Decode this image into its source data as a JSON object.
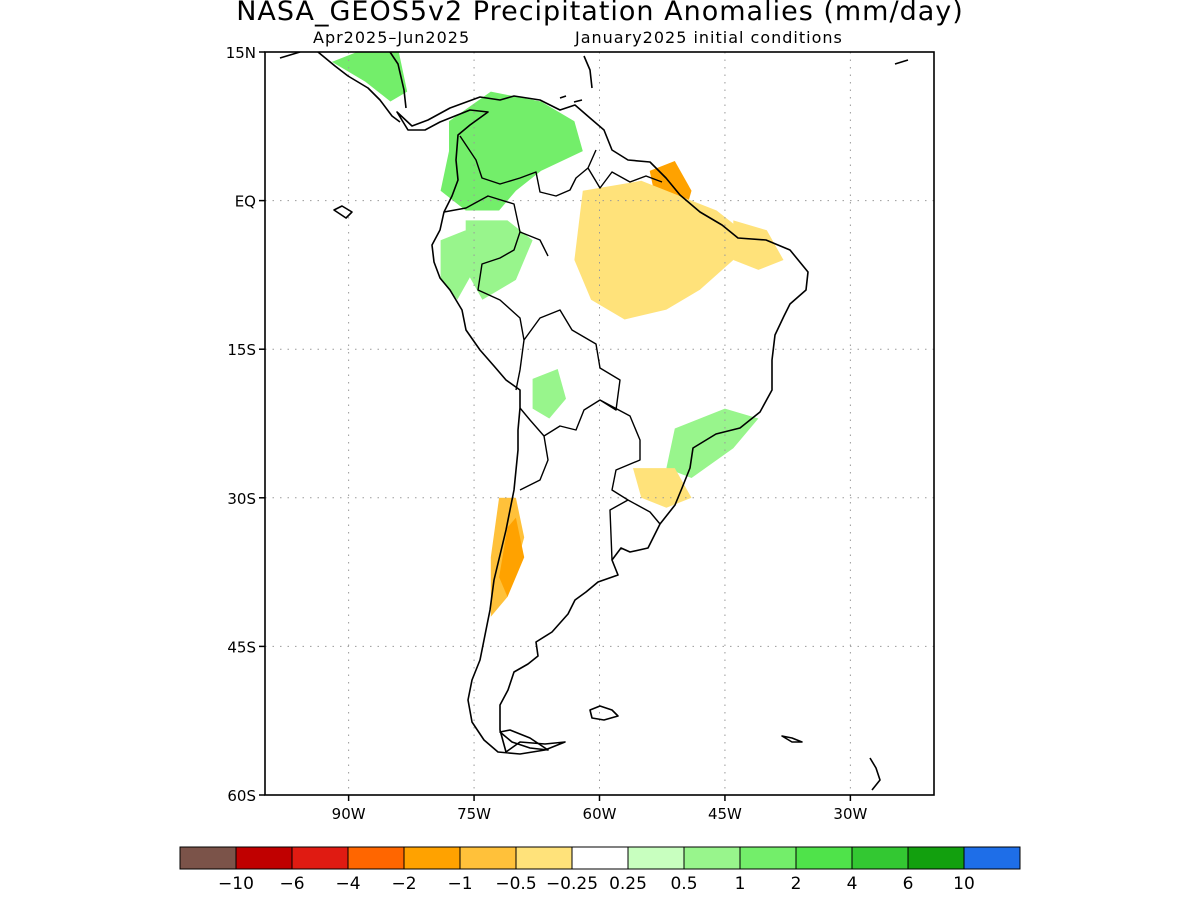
{
  "title": "NASA_GEOS5v2 Precipitation Anomalies (mm/day)",
  "subtitle_left": "Apr2025–Jun2025",
  "subtitle_right": "January2025 initial conditions",
  "map": {
    "lon_range": [
      -100,
      -20
    ],
    "lat_range": [
      -60,
      15
    ],
    "lat_ticks": [
      {
        "value": 15,
        "label": "15N"
      },
      {
        "value": 0,
        "label": "EQ"
      },
      {
        "value": -15,
        "label": "15S"
      },
      {
        "value": -30,
        "label": "30S"
      },
      {
        "value": -45,
        "label": "45S"
      },
      {
        "value": -60,
        "label": "60S"
      }
    ],
    "lon_ticks": [
      {
        "value": -90,
        "label": "90W"
      },
      {
        "value": -75,
        "label": "75W"
      },
      {
        "value": -60,
        "label": "60W"
      },
      {
        "value": -45,
        "label": "45W"
      },
      {
        "value": -30,
        "label": "30W"
      }
    ],
    "grid": true,
    "regions": [
      {
        "name": "central-america-wet",
        "category": 10,
        "points": [
          [
            -92,
            14
          ],
          [
            -89,
            15
          ],
          [
            -84,
            15
          ],
          [
            -83,
            11
          ],
          [
            -85,
            10
          ],
          [
            -88,
            12
          ]
        ]
      },
      {
        "name": "colombia-wet",
        "category": 10,
        "points": [
          [
            -78,
            8
          ],
          [
            -73,
            11
          ],
          [
            -67,
            10
          ],
          [
            -63,
            8
          ],
          [
            -62,
            5
          ],
          [
            -67,
            3
          ],
          [
            -70,
            1
          ],
          [
            -72,
            -1
          ],
          [
            -76,
            -1
          ],
          [
            -79,
            1
          ],
          [
            -78,
            5
          ]
        ]
      },
      {
        "name": "western-amazon-wet",
        "category": 9,
        "points": [
          [
            -76,
            -2
          ],
          [
            -71,
            -2
          ],
          [
            -68,
            -4
          ],
          [
            -70,
            -8
          ],
          [
            -74,
            -10
          ],
          [
            -76,
            -7
          ]
        ]
      },
      {
        "name": "peru-coast-wet",
        "category": 9,
        "points": [
          [
            -79,
            -4
          ],
          [
            -76,
            -3
          ],
          [
            -75,
            -7
          ],
          [
            -77,
            -10
          ],
          [
            -79,
            -8
          ]
        ]
      },
      {
        "name": "bolivia-wet",
        "category": 9,
        "points": [
          [
            -68,
            -18
          ],
          [
            -65,
            -17
          ],
          [
            -64,
            -20
          ],
          [
            -66,
            -22
          ],
          [
            -68,
            -21
          ]
        ]
      },
      {
        "name": "southeast-brazil-wet",
        "category": 9,
        "points": [
          [
            -51,
            -23
          ],
          [
            -45,
            -21
          ],
          [
            -41,
            -22
          ],
          [
            -44,
            -25
          ],
          [
            -49,
            -28
          ],
          [
            -52,
            -27
          ]
        ]
      },
      {
        "name": "amazon-mouth-dry",
        "category": 4,
        "points": [
          [
            -54,
            3
          ],
          [
            -51,
            4
          ],
          [
            -49,
            1
          ],
          [
            -50,
            -2
          ],
          [
            -53,
            -1
          ]
        ]
      },
      {
        "name": "pastaza-dry",
        "category": 4,
        "points": [
          [
            -60,
            -2
          ],
          [
            -58,
            -2
          ],
          [
            -57,
            -4
          ],
          [
            -59,
            -5
          ],
          [
            -61,
            -4
          ]
        ]
      },
      {
        "name": "amazon-basin-dry",
        "category": 6,
        "points": [
          [
            -62,
            1
          ],
          [
            -55,
            2
          ],
          [
            -49,
            0
          ],
          [
            -46,
            -1
          ],
          [
            -43,
            -3
          ],
          [
            -44,
            -6
          ],
          [
            -48,
            -9
          ],
          [
            -52,
            -11
          ],
          [
            -57,
            -12
          ],
          [
            -61,
            -10
          ],
          [
            -63,
            -6
          ]
        ]
      },
      {
        "name": "northeast-brazil-dry",
        "category": 6,
        "points": [
          [
            -44,
            -2
          ],
          [
            -40,
            -3
          ],
          [
            -38,
            -6
          ],
          [
            -41,
            -7
          ],
          [
            -44,
            -6
          ]
        ]
      },
      {
        "name": "bahia-coast-dry",
        "category": 7,
        "points": [
          [
            -39,
            -13
          ],
          [
            -37,
            -12
          ],
          [
            -37,
            -17
          ],
          [
            -39,
            -18
          ]
        ]
      },
      {
        "name": "southern-brazil-dry",
        "category": 6,
        "points": [
          [
            -56,
            -27
          ],
          [
            -51,
            -27
          ],
          [
            -49,
            -30
          ],
          [
            -52,
            -31
          ],
          [
            -55,
            -30
          ]
        ]
      },
      {
        "name": "pampas-dry",
        "category": 7,
        "points": [
          [
            -65,
            -31
          ],
          [
            -60,
            -31
          ],
          [
            -56,
            -34
          ],
          [
            -58,
            -38
          ],
          [
            -62,
            -40
          ],
          [
            -66,
            -38
          ],
          [
            -67,
            -34
          ]
        ]
      },
      {
        "name": "andes-chile-dry",
        "category": 5,
        "points": [
          [
            -72,
            -30
          ],
          [
            -70,
            -30
          ],
          [
            -69,
            -34
          ],
          [
            -71,
            -40
          ],
          [
            -73,
            -42
          ],
          [
            -73,
            -36
          ]
        ]
      },
      {
        "name": "andes-core-dry",
        "category": 4,
        "points": [
          [
            -71,
            -33
          ],
          [
            -70,
            -32
          ],
          [
            -69,
            -36
          ],
          [
            -71,
            -40
          ],
          [
            -72,
            -38
          ]
        ]
      },
      {
        "name": "patagonia-dry",
        "category": 7,
        "points": [
          [
            -72,
            -41
          ],
          [
            -68,
            -41
          ],
          [
            -66,
            -44
          ],
          [
            -68,
            -47
          ],
          [
            -71,
            -46
          ]
        ]
      }
    ]
  },
  "colorbar": {
    "colors": [
      "#7b5349",
      "#c00000",
      "#e01b12",
      "#ff6600",
      "#ffa200",
      "#ffc13a",
      "#ffe27a",
      "#ffffff",
      "#c8ffbf",
      "#98f58c",
      "#73ee6a",
      "#4fe34a",
      "#33c832",
      "#12a00e",
      "#1e6ee8"
    ],
    "labels": [
      "−10",
      "−6",
      "−4",
      "−2",
      "−1",
      "−0.5",
      "−0.25",
      "0.25",
      "0.5",
      "1",
      "2",
      "4",
      "6",
      "10"
    ]
  }
}
